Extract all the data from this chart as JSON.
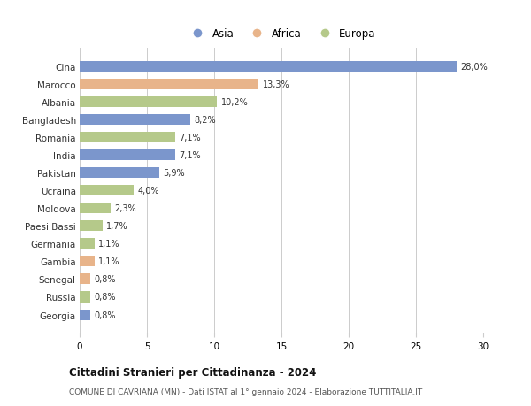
{
  "countries": [
    "Cina",
    "Marocco",
    "Albania",
    "Bangladesh",
    "Romania",
    "India",
    "Pakistan",
    "Ucraina",
    "Moldova",
    "Paesi Bassi",
    "Germania",
    "Gambia",
    "Senegal",
    "Russia",
    "Georgia"
  ],
  "values": [
    28.0,
    13.3,
    10.2,
    8.2,
    7.1,
    7.1,
    5.9,
    4.0,
    2.3,
    1.7,
    1.1,
    1.1,
    0.8,
    0.8,
    0.8
  ],
  "labels": [
    "28,0%",
    "13,3%",
    "10,2%",
    "8,2%",
    "7,1%",
    "7,1%",
    "5,9%",
    "4,0%",
    "2,3%",
    "1,7%",
    "1,1%",
    "1,1%",
    "0,8%",
    "0,8%",
    "0,8%"
  ],
  "regions": [
    "Asia",
    "Africa",
    "Europa",
    "Asia",
    "Europa",
    "Asia",
    "Asia",
    "Europa",
    "Europa",
    "Europa",
    "Europa",
    "Africa",
    "Africa",
    "Europa",
    "Asia"
  ],
  "colors": {
    "Asia": "#7b96cc",
    "Africa": "#e8b48a",
    "Europa": "#b5c98a"
  },
  "title": "Cittadini Stranieri per Cittadinanza - 2024",
  "subtitle": "COMUNE DI CAVRIANA (MN) - Dati ISTAT al 1° gennaio 2024 - Elaborazione TUTTITALIA.IT",
  "xlim": [
    0,
    30
  ],
  "xticks": [
    0,
    5,
    10,
    15,
    20,
    25,
    30
  ],
  "background_color": "#ffffff",
  "grid_color": "#cccccc"
}
